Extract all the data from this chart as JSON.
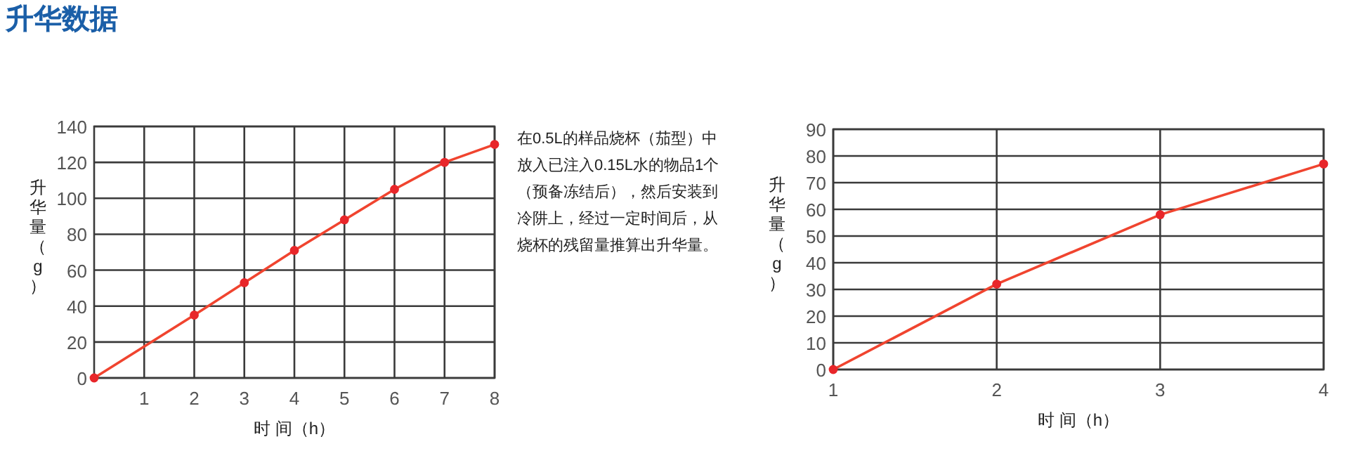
{
  "chart_data": [
    {
      "type": "line",
      "title": "升华数据",
      "xlabel": "时 间（h）",
      "ylabel": "升华量（g）",
      "x": [
        0,
        2,
        3,
        4,
        5,
        6,
        7,
        8
      ],
      "series": [
        {
          "color": "#f0442f",
          "values": [
            0,
            35,
            53,
            71,
            88,
            105,
            120,
            130
          ]
        }
      ],
      "xlim": [
        0,
        8
      ],
      "ylim": [
        0,
        140
      ],
      "xticks": [
        1,
        2,
        3,
        4,
        5,
        6,
        7,
        8
      ],
      "yticks": [
        0,
        20,
        40,
        60,
        80,
        100,
        120,
        140
      ],
      "grid": true,
      "marker": "circle"
    },
    {
      "type": "other",
      "annotations": [
        "在0.5L的样品烧杯（茄型）中",
        "放入已注入0.15L水的物品1个",
        "（预备冻结后），然后安装到",
        "冷阱上，经过一定时间后，从",
        "烧杯的残留量推算出升华量。"
      ]
    },
    {
      "type": "line",
      "xlabel": "时 间（h）",
      "ylabel": "升华量（g）",
      "x": [
        1,
        2,
        3,
        4
      ],
      "series": [
        {
          "color": "#f0442f",
          "values": [
            0,
            32,
            58,
            77
          ]
        }
      ],
      "xlim": [
        1,
        4
      ],
      "ylim": [
        0,
        90
      ],
      "xticks": [
        1,
        2,
        3,
        4
      ],
      "yticks": [
        0,
        10,
        20,
        30,
        40,
        50,
        60,
        70,
        80,
        90
      ],
      "grid": true,
      "marker": "circle"
    }
  ]
}
